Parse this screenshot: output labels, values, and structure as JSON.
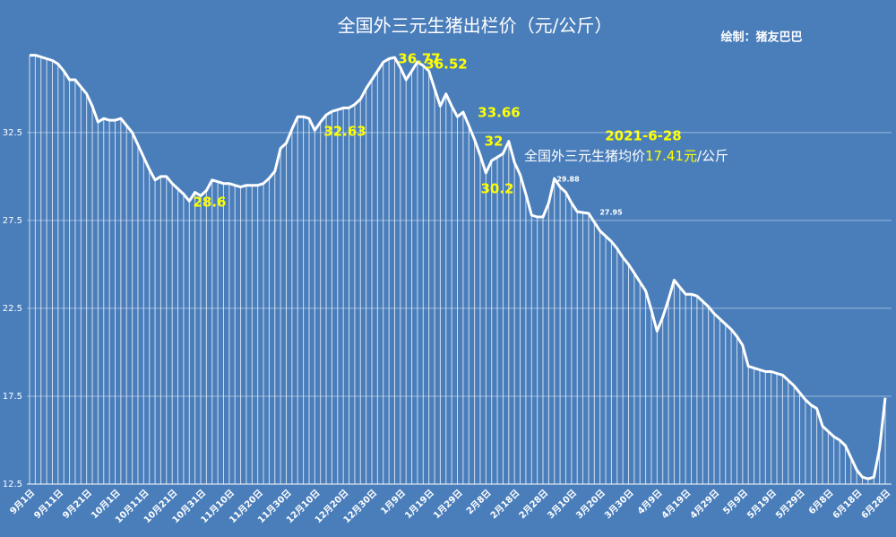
{
  "chart_data": {
    "type": "line",
    "title": "全国外三元生猪出栏价（元/公斤）",
    "credit": "绘制：猪友巴巴",
    "note": {
      "date": "2021-6-28",
      "prefix": "全国外三元生猪均价",
      "price": "17.41元",
      "suffix": "/公斤"
    },
    "categories": [
      "9月1日",
      null,
      null,
      null,
      null,
      "9月11日",
      null,
      null,
      null,
      null,
      "9月21日",
      null,
      null,
      null,
      null,
      "10月1日",
      null,
      null,
      null,
      null,
      "10月11日",
      null,
      null,
      null,
      null,
      "10月21日",
      null,
      null,
      null,
      null,
      "10月31日",
      null,
      null,
      null,
      null,
      "11月10日",
      null,
      null,
      null,
      null,
      "11月20日",
      null,
      null,
      null,
      null,
      "11月30日",
      null,
      null,
      null,
      null,
      "12月10日",
      null,
      null,
      null,
      null,
      "12月20日",
      null,
      null,
      null,
      null,
      "12月30日",
      null,
      null,
      null,
      null,
      "1月9日",
      null,
      null,
      null,
      null,
      "1月19日",
      null,
      null,
      null,
      null,
      "1月29日",
      null,
      null,
      null,
      null,
      "2月8日",
      null,
      null,
      null,
      null,
      "2月18日",
      null,
      null,
      null,
      null,
      "2月28日",
      null,
      null,
      null,
      null,
      "3月10日",
      null,
      null,
      null,
      null,
      "3月20日",
      null,
      null,
      null,
      null,
      "3月30日",
      null,
      null,
      null,
      null,
      "4月9日",
      null,
      null,
      null,
      null,
      "4月19日",
      null,
      null,
      null,
      null,
      "4月29日",
      null,
      null,
      null,
      null,
      "5月9日",
      null,
      null,
      null,
      null,
      "5月19日",
      null,
      null,
      null,
      null,
      "5月29日",
      null,
      null,
      null,
      null,
      "6月8日",
      null,
      null,
      null,
      null,
      "6月18日",
      null,
      null,
      null,
      null,
      "6月28日"
    ],
    "values": [
      36.9,
      36.9,
      36.8,
      36.7,
      36.6,
      36.4,
      36.0,
      35.5,
      35.5,
      35.1,
      34.7,
      34.0,
      33.1,
      33.3,
      33.2,
      33.2,
      33.3,
      32.9,
      32.5,
      31.8,
      31.1,
      30.4,
      29.8,
      30.0,
      30.0,
      29.6,
      29.3,
      29.0,
      28.6,
      29.1,
      28.9,
      29.2,
      29.8,
      29.7,
      29.6,
      29.6,
      29.5,
      29.4,
      29.5,
      29.5,
      29.5,
      29.6,
      29.9,
      30.3,
      31.6,
      31.9,
      32.7,
      33.4,
      33.4,
      33.3,
      32.63,
      33.1,
      33.5,
      33.7,
      33.8,
      33.9,
      33.9,
      34.1,
      34.4,
      35.0,
      35.5,
      36.0,
      36.5,
      36.7,
      36.77,
      36.2,
      35.5,
      36.0,
      36.52,
      36.3,
      36.0,
      35.0,
      34.0,
      34.7,
      34.0,
      33.4,
      33.66,
      32.9,
      32.1,
      31.2,
      30.2,
      30.9,
      31.1,
      31.3,
      32,
      30.8,
      30.1,
      29.0,
      27.8,
      27.7,
      27.7,
      28.5,
      29.88,
      29.4,
      29.1,
      28.5,
      28.0,
      27.95,
      27.9,
      27.4,
      26.9,
      26.6,
      26.3,
      25.9,
      25.4,
      25.0,
      24.5,
      24.0,
      23.5,
      22.4,
      21.2,
      22.0,
      23.0,
      24.1,
      23.7,
      23.3,
      23.3,
      23.2,
      22.9,
      22.6,
      22.2,
      21.9,
      21.6,
      21.3,
      20.9,
      20.4,
      19.2,
      19.1,
      19.0,
      18.9,
      18.9,
      18.8,
      18.7,
      18.4,
      18.1,
      17.7,
      17.3,
      17.0,
      16.8,
      15.8,
      15.5,
      15.2,
      15.0,
      14.7,
      14.0,
      13.3,
      12.9,
      12.8,
      12.9,
      14.5,
      17.41
    ],
    "color": "#ffffff",
    "ylim": [
      12.5,
      38
    ],
    "yticks": [
      12.5,
      17.5,
      22.5,
      27.5,
      32.5
    ],
    "grid": true,
    "annotations": [
      {
        "text": "36.77",
        "color": "#ffff00"
      },
      {
        "text": "36.52",
        "color": "#ffff00"
      },
      {
        "text": "33.66",
        "color": "#ffff00"
      },
      {
        "text": "32",
        "color": "#ffff00"
      },
      {
        "text": "30.2",
        "color": "#ffff00"
      },
      {
        "text": "32.63",
        "color": "#ffff00"
      },
      {
        "text": "28.6",
        "color": "#ffff00"
      },
      {
        "text": "29.88",
        "color": "#ffffff"
      },
      {
        "text": "27.95",
        "color": "#ffffff"
      }
    ]
  }
}
